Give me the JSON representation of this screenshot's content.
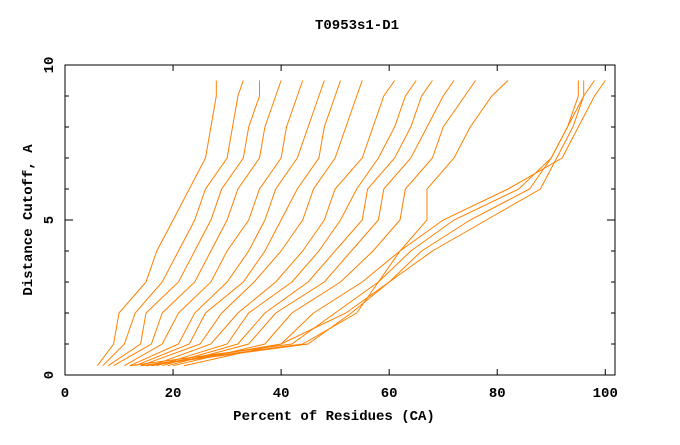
{
  "chart_data": {
    "type": "line",
    "title": "T0953s1-D1",
    "xlabel": "Percent of Residues (CA)",
    "ylabel": "Distance Cutoff, A",
    "xlim": [
      0,
      101.8
    ],
    "ylim": [
      0,
      10
    ],
    "xticks": [
      "0",
      "20",
      "40",
      "60",
      "80",
      "100"
    ],
    "xtick_values": [
      0,
      20,
      40,
      60,
      80,
      100
    ],
    "yticks": [
      "0",
      "5",
      "10"
    ],
    "ytick_values": [
      0,
      5,
      10
    ],
    "grid": false,
    "line_color": "#ff8000",
    "y_levels": [
      0.3,
      1,
      2,
      3,
      4,
      5,
      6,
      7,
      8,
      9,
      9.5
    ],
    "series": [
      {
        "x": [
          6,
          9,
          10,
          15,
          17,
          20,
          23,
          26,
          27,
          28,
          28
        ]
      },
      {
        "x": [
          7,
          11,
          13,
          18,
          21,
          24,
          26,
          30,
          31,
          32,
          33
        ]
      },
      {
        "x": [
          8,
          14,
          15,
          21,
          24,
          27,
          29,
          33,
          34,
          36,
          36
        ]
      },
      {
        "x": [
          9,
          16,
          18,
          24,
          27,
          30,
          32,
          36,
          37,
          39,
          40
        ]
      },
      {
        "x": [
          11,
          18,
          21,
          27,
          30,
          34,
          36,
          40,
          41,
          43,
          44
        ]
      },
      {
        "x": [
          12,
          21,
          24,
          30,
          34,
          37,
          39,
          43,
          45,
          47,
          48
        ]
      },
      {
        "x": [
          13,
          23,
          26,
          33,
          37,
          40,
          43,
          47,
          48,
          50,
          51
        ]
      },
      {
        "x": [
          14,
          25,
          29,
          35,
          40,
          44,
          46,
          50,
          52,
          54,
          55
        ]
      },
      {
        "x": [
          16,
          27,
          32,
          39,
          44,
          48,
          50,
          55,
          57,
          59,
          61
        ]
      },
      {
        "x": [
          17,
          30,
          34,
          42,
          47,
          51,
          54,
          58,
          61,
          63,
          65
        ]
      },
      {
        "x": [
          18,
          32,
          37,
          45,
          50,
          55,
          56,
          61,
          64,
          66,
          68
        ]
      },
      {
        "x": [
          19,
          34,
          39,
          48,
          53,
          58,
          59,
          64,
          67,
          70,
          72
        ]
      },
      {
        "x": [
          20,
          37,
          42,
          51,
          57,
          62,
          63,
          68,
          70,
          74,
          76
        ]
      },
      {
        "x": [
          22,
          40,
          46,
          55,
          62,
          67,
          67,
          72,
          75,
          79,
          82
        ]
      },
      {
        "x": [
          15,
          45,
          53,
          60,
          68,
          78,
          88,
          91,
          94,
          96,
          96
        ]
      },
      {
        "x": [
          12,
          42,
          50,
          58,
          64,
          72,
          84,
          90,
          93,
          96,
          98
        ]
      },
      {
        "x": [
          14,
          44,
          54,
          58,
          62,
          70,
          82,
          92,
          95,
          98,
          100
        ]
      },
      {
        "x": [
          16,
          40,
          52,
          60,
          66,
          75,
          86,
          90,
          93,
          95,
          95
        ]
      }
    ]
  }
}
